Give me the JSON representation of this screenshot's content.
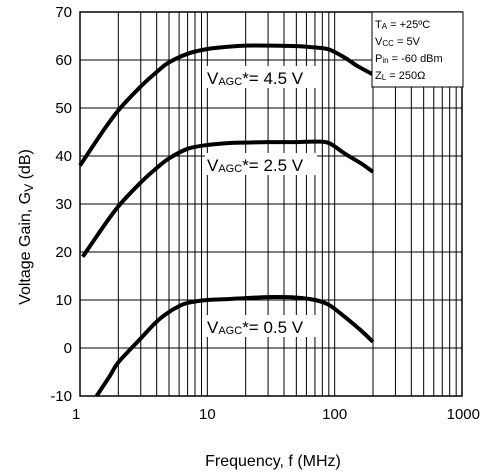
{
  "chart_data": {
    "type": "line",
    "xlabel": "Frequency, f (MHz)",
    "ylabel": "Voltage Gain, Gv (dB)",
    "ylabel_main": "Voltage Gain, G",
    "ylabel_sub": "V",
    "ylabel_suffix": " (dB)",
    "x_scale": "log",
    "xlim": [
      1,
      1000
    ],
    "ylim": [
      -10,
      70
    ],
    "x_ticks": [
      1,
      10,
      100,
      1000
    ],
    "x_tick_labels": [
      "1",
      "10",
      "100",
      "1000"
    ],
    "y_ticks": [
      -10,
      0,
      10,
      20,
      30,
      40,
      50,
      60,
      70
    ],
    "y_tick_labels": [
      "-10",
      "0",
      "10",
      "20",
      "30",
      "40",
      "50",
      "60",
      "70"
    ],
    "grid": true,
    "conditions": [
      {
        "main": "T",
        "sub": "A",
        "rest": " = +25ºC"
      },
      {
        "main": "V",
        "sub": "CC",
        "rest": " = 5V"
      },
      {
        "main": "P",
        "sub": "in",
        "rest": " = -60 dBm"
      },
      {
        "main": "Z",
        "sub": "L",
        "rest": " = 250Ω"
      }
    ],
    "series": [
      {
        "label_main": "V",
        "label_sub": "AGC",
        "label_rest": "*= 4.5 V",
        "points": [
          [
            1,
            38
          ],
          [
            1.5,
            45
          ],
          [
            2,
            49.5
          ],
          [
            3,
            54.5
          ],
          [
            4,
            57.5
          ],
          [
            5,
            59.5
          ],
          [
            7,
            61.3
          ],
          [
            10,
            62.3
          ],
          [
            15,
            62.8
          ],
          [
            20,
            63
          ],
          [
            30,
            63
          ],
          [
            50,
            62.9
          ],
          [
            70,
            62.6
          ],
          [
            90,
            62.2
          ],
          [
            120,
            60.5
          ],
          [
            150,
            58.8
          ],
          [
            200,
            57
          ]
        ]
      },
      {
        "label_main": "V",
        "label_sub": "AGC",
        "label_rest": "*= 2.5 V",
        "points": [
          [
            1.05,
            19
          ],
          [
            1.5,
            25
          ],
          [
            2,
            29.5
          ],
          [
            3,
            34.5
          ],
          [
            4,
            37.5
          ],
          [
            5,
            39.5
          ],
          [
            7,
            41.5
          ],
          [
            10,
            42.3
          ],
          [
            15,
            42.7
          ],
          [
            20,
            42.8
          ],
          [
            30,
            42.9
          ],
          [
            50,
            42.9
          ],
          [
            70,
            43
          ],
          [
            90,
            42.7
          ],
          [
            120,
            40.5
          ],
          [
            160,
            38.5
          ],
          [
            200,
            36.7
          ]
        ]
      },
      {
        "label_main": "V",
        "label_sub": "AGC",
        "label_rest": "*= 0.5 V",
        "points": [
          [
            1.35,
            -10
          ],
          [
            1.7,
            -6
          ],
          [
            2,
            -3
          ],
          [
            3,
            2
          ],
          [
            4,
            5.5
          ],
          [
            5,
            7.5
          ],
          [
            6,
            8.7
          ],
          [
            7,
            9.4
          ],
          [
            10,
            10
          ],
          [
            15,
            10.2
          ],
          [
            20,
            10.4
          ],
          [
            30,
            10.6
          ],
          [
            50,
            10.5
          ],
          [
            70,
            10
          ],
          [
            90,
            9
          ],
          [
            120,
            6.5
          ],
          [
            160,
            3.7
          ],
          [
            200,
            1.3
          ]
        ]
      }
    ]
  }
}
